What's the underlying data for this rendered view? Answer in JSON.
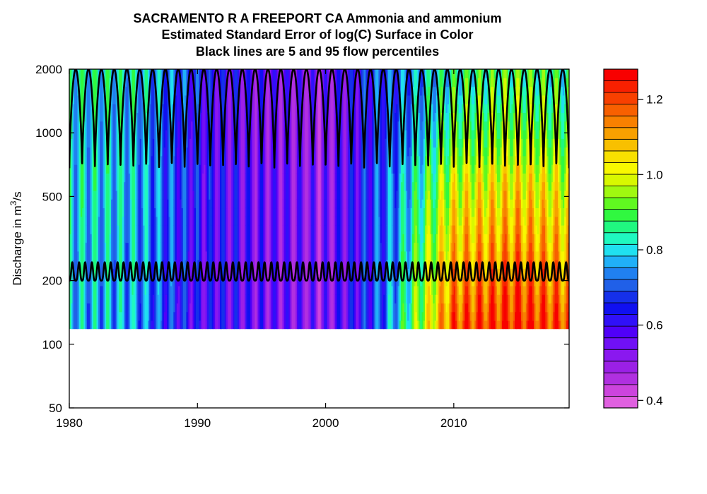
{
  "chart_data": {
    "type": "heatmap",
    "title_lines": [
      "SACRAMENTO R A FREEPORT CA    Ammonia and ammonium",
      "Estimated Standard Error of log(C) Surface in Color",
      "Black lines are 5 and 95 flow percentiles"
    ],
    "ylabel_prefix": "Discharge in m",
    "ylabel_sup": "3",
    "ylabel_suffix": "/s",
    "xlim": [
      1980,
      2019
    ],
    "ylim": [
      50,
      2000
    ],
    "y_scale": "log",
    "x_ticks": [
      "1980",
      "1990",
      "2000",
      "2010"
    ],
    "y_ticks": [
      "50",
      "100",
      "200",
      "500",
      "1000",
      "2000"
    ],
    "surface_y_range": [
      118,
      2000
    ],
    "colorbar": {
      "range": [
        0.38,
        1.28
      ],
      "ticks": [
        "0.4",
        "0.6",
        "0.8",
        "1.0",
        "1.2"
      ],
      "colors": [
        "#e060e0",
        "#cc44dd",
        "#b030e0",
        "#9b20e6",
        "#8a18ef",
        "#7010f5",
        "#5000f8",
        "#3010f8",
        "#1010f0",
        "#1530ea",
        "#2060e8",
        "#2080f0",
        "#20b0f8",
        "#20e0f0",
        "#20f8c0",
        "#20f880",
        "#30f840",
        "#60f820",
        "#a0f810",
        "#d8f800",
        "#f8f800",
        "#f8e000",
        "#f8c000",
        "#f8a000",
        "#f88000",
        "#f86000",
        "#f84000",
        "#f82000",
        "#f80000"
      ]
    },
    "decade_mean_error": [
      {
        "x": 1980,
        "value": 0.8
      },
      {
        "x": 1985,
        "value": 0.78
      },
      {
        "x": 1990,
        "value": 0.62
      },
      {
        "x": 1995,
        "value": 0.55
      },
      {
        "x": 2000,
        "value": 0.52
      },
      {
        "x": 2005,
        "value": 0.72
      },
      {
        "x": 2010,
        "value": 1.05
      },
      {
        "x": 2015,
        "value": 1.1
      },
      {
        "x": 2019,
        "value": 1.05
      }
    ],
    "flow_percentiles": [
      {
        "name": "5",
        "min": 200,
        "max": 260,
        "cycles_per_year": 2
      },
      {
        "name": "95",
        "min": 680,
        "max": 2000,
        "cycles_per_year": 1
      }
    ],
    "grid": false
  }
}
